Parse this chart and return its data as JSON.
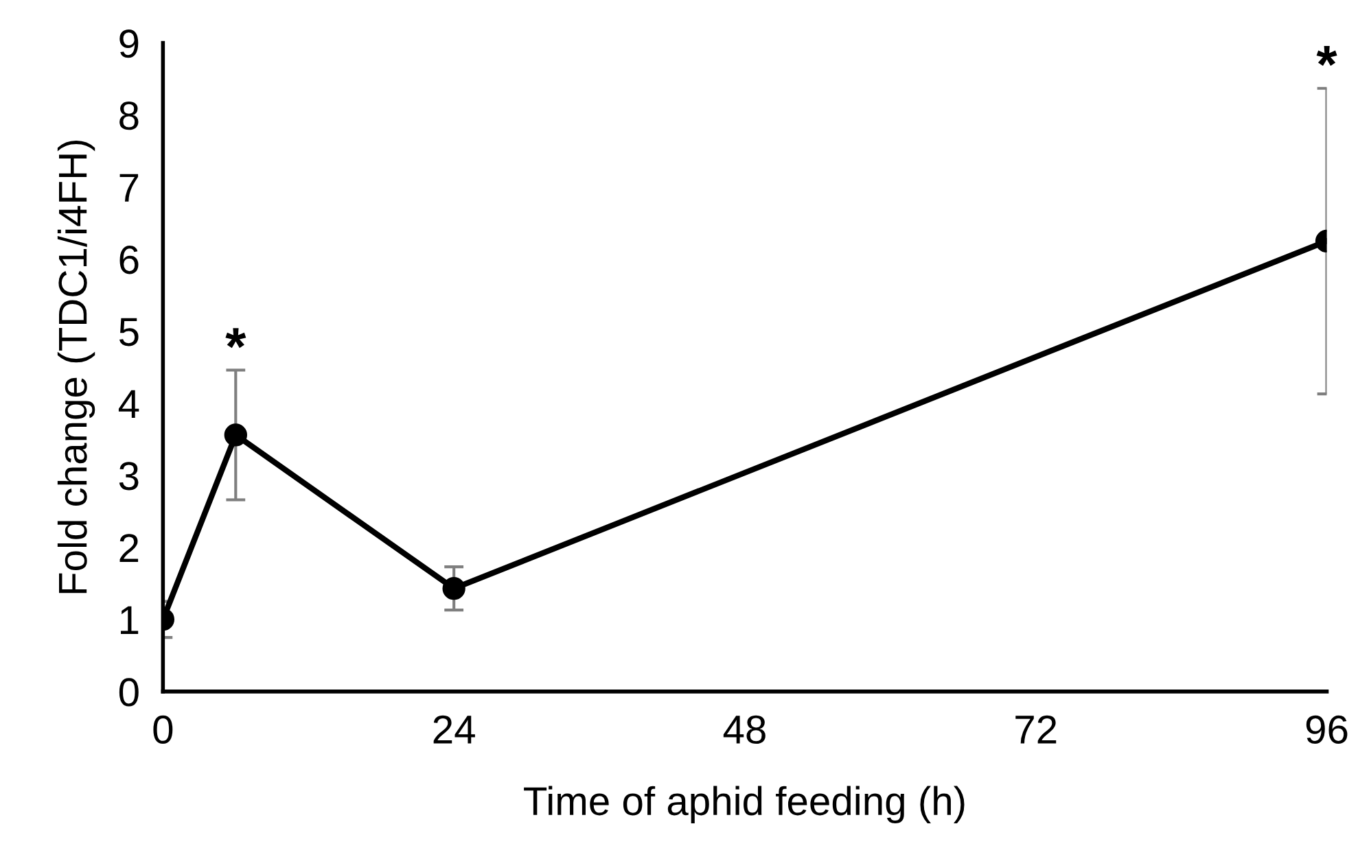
{
  "chart_data": {
    "type": "line",
    "xlabel": "Time of aphid feeding (h)",
    "ylabel": "Fold change (TDC1/i4FH)",
    "x": [
      0,
      6,
      24,
      96
    ],
    "series": [
      {
        "color": "#000000",
        "values": [
          1.0,
          3.56,
          1.43,
          6.25
        ],
        "errors": [
          0.25,
          0.9,
          0.3,
          2.12
        ]
      }
    ],
    "xlim": [
      0,
      96
    ],
    "xticks": [
      0,
      24,
      48,
      72,
      96
    ],
    "ylim": [
      0,
      9
    ],
    "yticks": [
      0,
      1,
      2,
      3,
      4,
      5,
      6,
      7,
      8,
      9
    ],
    "marker": "circle",
    "line_style": "solid",
    "grid": false,
    "legend": false,
    "annotations": [
      "*",
      "*"
    ]
  }
}
